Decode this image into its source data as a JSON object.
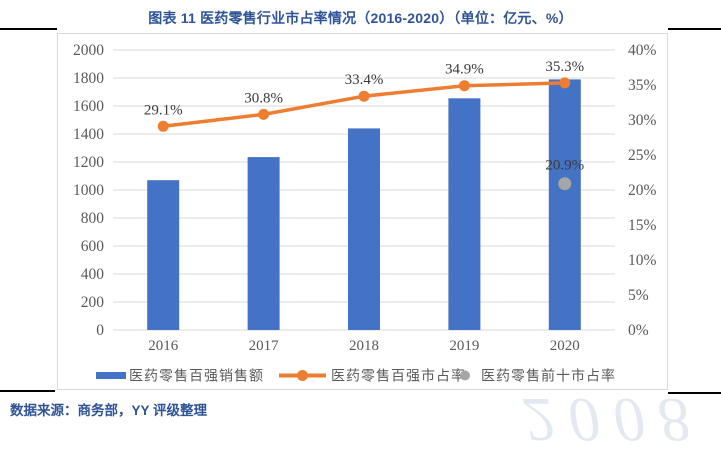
{
  "page": {
    "title": "图表 11 医药零售行业市占率情况（2016-2020）（单位：亿元、%）",
    "source_note": "数据来源：商务部，YY 评级整理",
    "watermark_text": "2008"
  },
  "colors": {
    "title_blue": "#2F5496",
    "bar_blue": "#4472C4",
    "line_orange": "#ED7D31",
    "dot_gray": "#A6A6A6",
    "grid_gray": "#D9D9D9",
    "tick_text": "#595959",
    "data_label_text": "#3B3B3B"
  },
  "chart_data": {
    "type": "combo",
    "title": "医药零售行业市占率情况（2016-2020）",
    "units": "亿元、%",
    "grid": true,
    "legend_position": "bottom",
    "categories": [
      "2016",
      "2017",
      "2018",
      "2019",
      "2020"
    ],
    "series": [
      {
        "name": "医药零售百强销售额",
        "type": "bar",
        "axis": "left",
        "color": "#4472C4",
        "values": [
          1070,
          1235,
          1440,
          1655,
          1790
        ]
      },
      {
        "name": "医药零售百强市占率",
        "type": "line",
        "axis": "right",
        "color": "#ED7D31",
        "values": [
          29.1,
          30.8,
          33.4,
          34.9,
          35.3
        ],
        "labels": [
          "29.1%",
          "30.8%",
          "33.4%",
          "34.9%",
          "35.3%"
        ]
      },
      {
        "name": "医药零售前十市占率",
        "type": "scatter",
        "axis": "right",
        "color": "#A6A6A6",
        "values": [
          null,
          null,
          null,
          null,
          20.9
        ],
        "labels": [
          null,
          null,
          null,
          null,
          "20.9%"
        ]
      }
    ],
    "left_axis": {
      "min": 0,
      "max": 2000,
      "step": 200,
      "tick_labels": [
        "2000",
        "1800",
        "1600",
        "1400",
        "1200",
        "1000",
        "800",
        "600",
        "400",
        "200",
        "0"
      ]
    },
    "right_axis": {
      "min": 0,
      "max": 40,
      "step": 5,
      "tick_labels": [
        "40%",
        "35%",
        "30%",
        "25%",
        "20%",
        "15%",
        "10%",
        "5%",
        "0%"
      ]
    }
  }
}
